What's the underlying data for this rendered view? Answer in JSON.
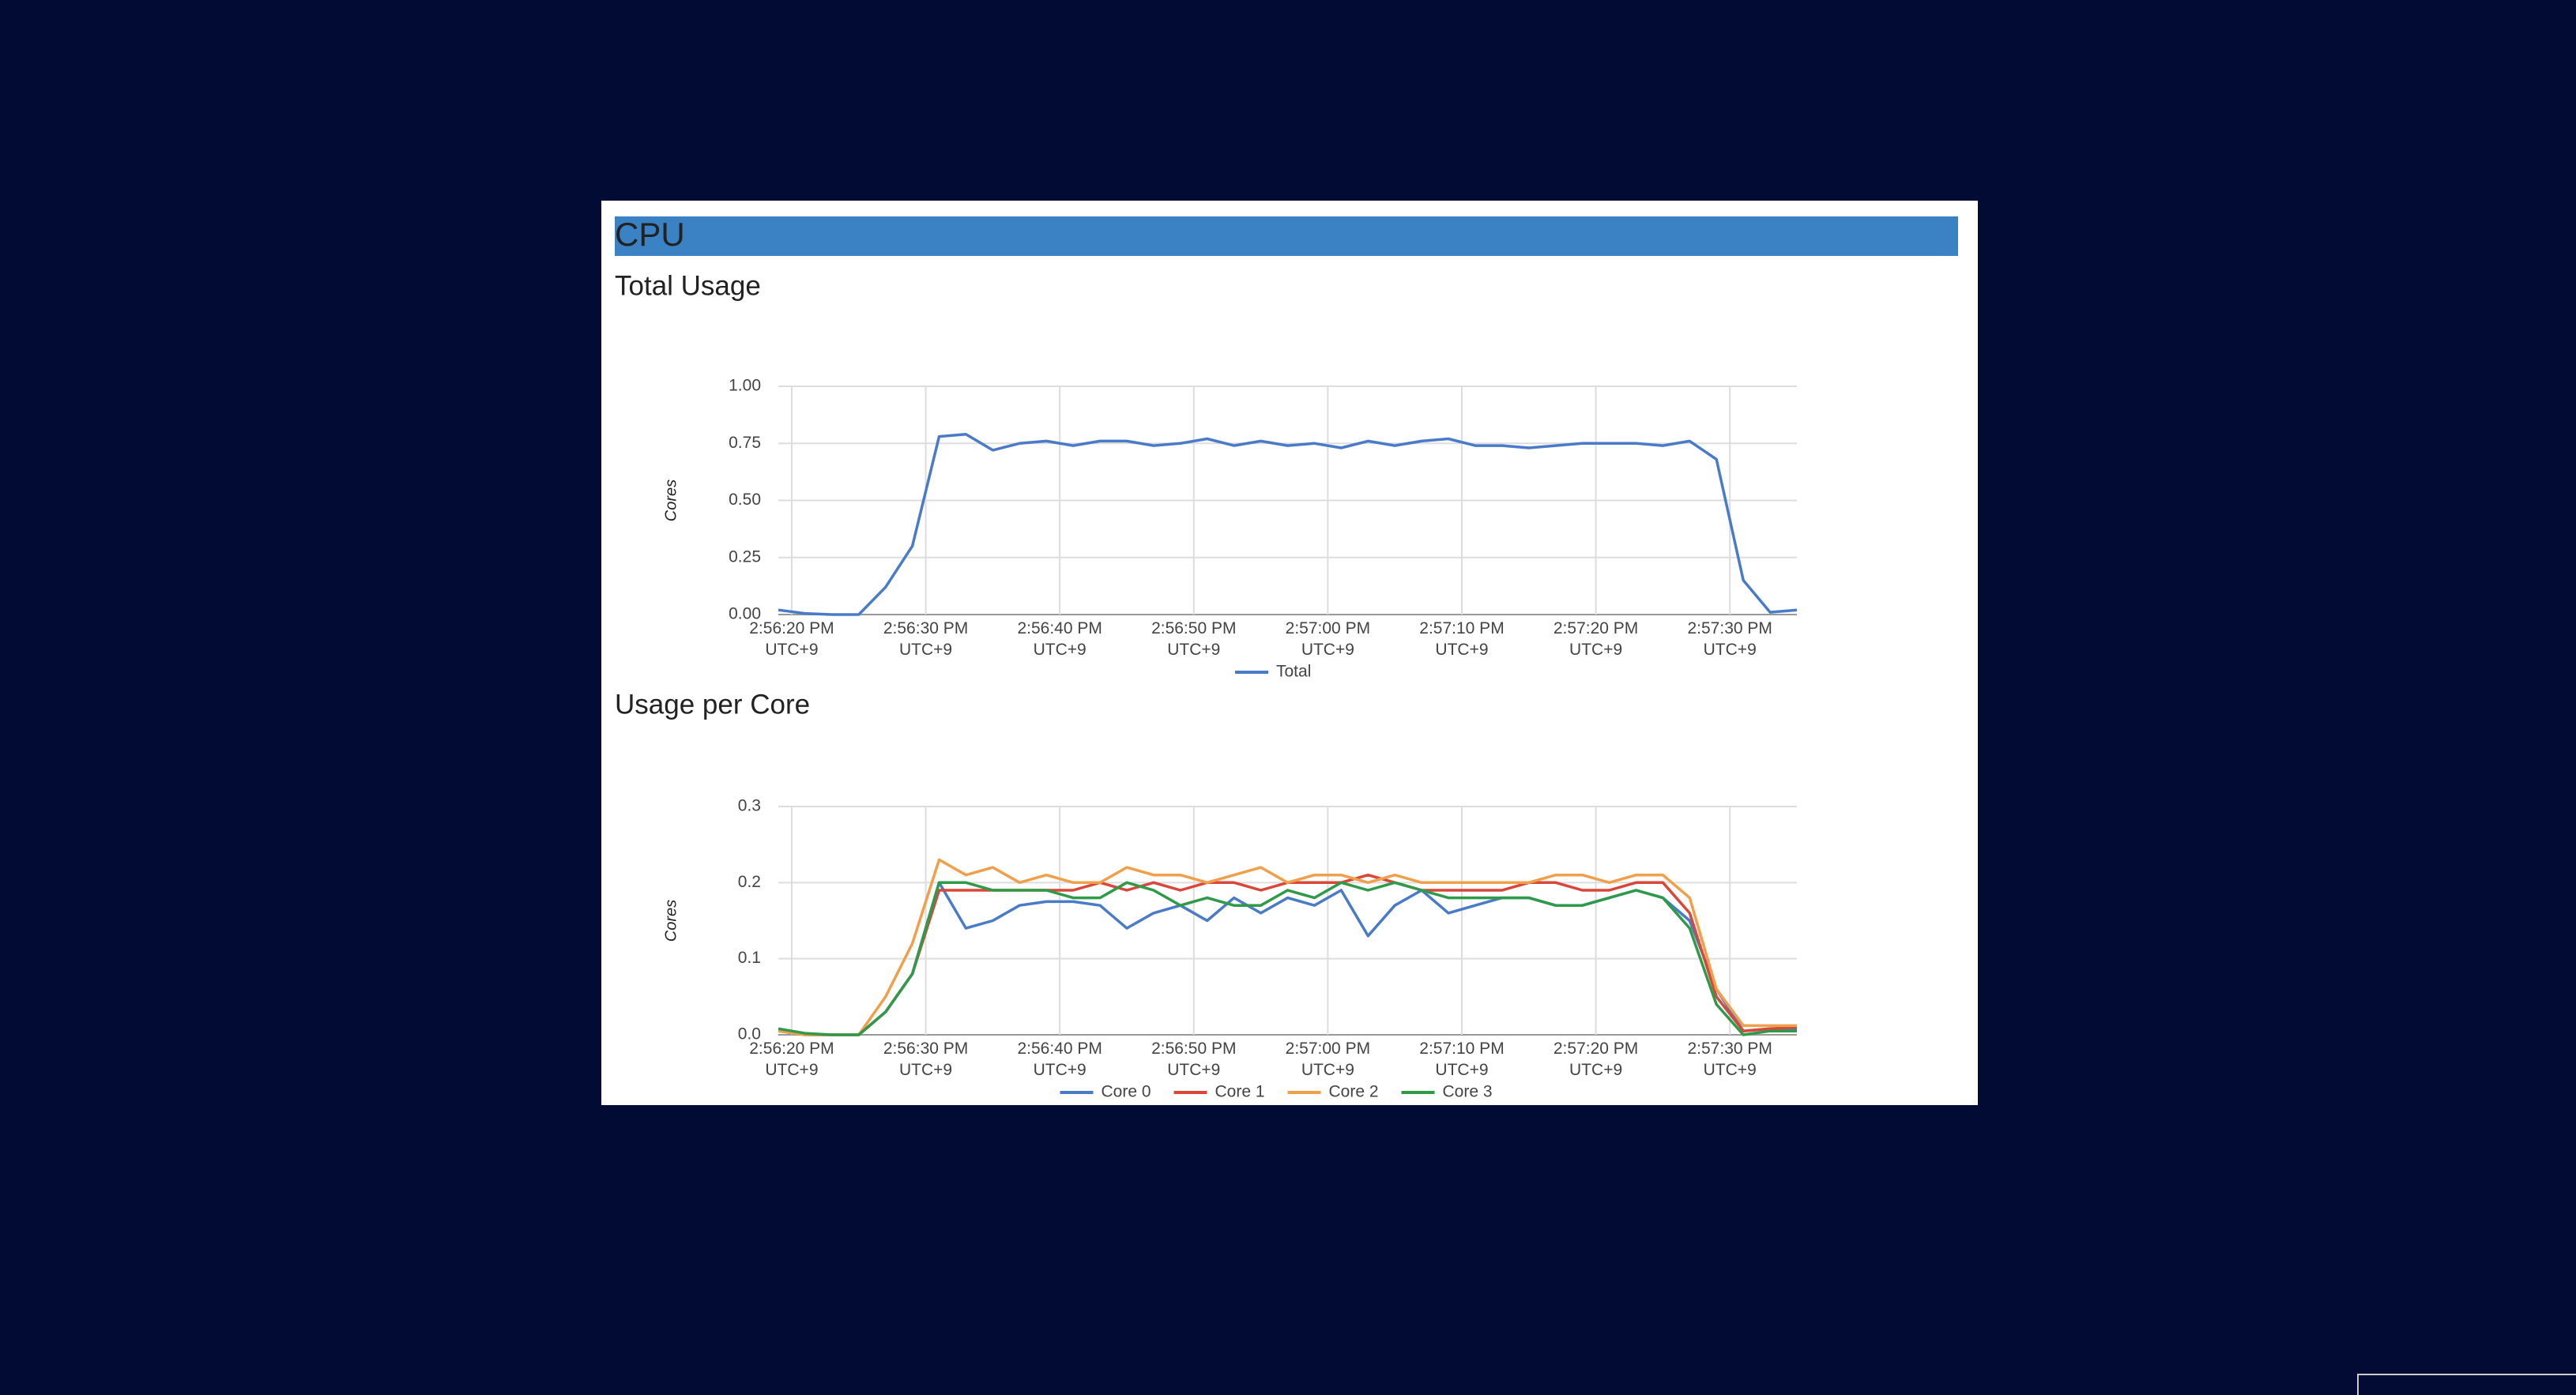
{
  "header": {
    "title": "CPU"
  },
  "chart_data": [
    {
      "type": "line",
      "title": "Total Usage",
      "y_label": "Cores",
      "x": [
        "2:56:19 PM",
        "2:56:21 PM",
        "2:56:23 PM",
        "2:56:25 PM",
        "2:56:27 PM",
        "2:56:29 PM",
        "2:56:31 PM",
        "2:56:33 PM",
        "2:56:35 PM",
        "2:56:37 PM",
        "2:56:39 PM",
        "2:56:41 PM",
        "2:56:43 PM",
        "2:56:45 PM",
        "2:56:47 PM",
        "2:56:49 PM",
        "2:56:51 PM",
        "2:56:53 PM",
        "2:56:55 PM",
        "2:56:57 PM",
        "2:56:59 PM",
        "2:57:01 PM",
        "2:57:03 PM",
        "2:57:05 PM",
        "2:57:07 PM",
        "2:57:09 PM",
        "2:57:11 PM",
        "2:57:13 PM",
        "2:57:15 PM",
        "2:57:17 PM",
        "2:57:19 PM",
        "2:57:21 PM",
        "2:57:23 PM",
        "2:57:25 PM",
        "2:57:27 PM",
        "2:57:29 PM",
        "2:57:31 PM",
        "2:57:33 PM",
        "2:57:35 PM"
      ],
      "series": [
        {
          "name": "Total",
          "color": "#4a7bc8",
          "values": [
            0.02,
            0.005,
            0,
            0,
            0.12,
            0.3,
            0.78,
            0.79,
            0.72,
            0.75,
            0.76,
            0.74,
            0.76,
            0.76,
            0.74,
            0.75,
            0.77,
            0.74,
            0.76,
            0.74,
            0.75,
            0.73,
            0.76,
            0.74,
            0.76,
            0.77,
            0.74,
            0.74,
            0.73,
            0.74,
            0.75,
            0.75,
            0.75,
            0.74,
            0.76,
            0.68,
            0.15,
            0.01,
            0.02
          ]
        }
      ],
      "xlim": [
        "2:56:19 PM",
        "2:57:35 PM"
      ],
      "xticks": [
        {
          "value": "2:56:20 PM",
          "label": "2:56:20 PM UTC+9"
        },
        {
          "value": "2:56:30 PM",
          "label": "2:56:30 PM UTC+9"
        },
        {
          "value": "2:56:40 PM",
          "label": "2:56:40 PM UTC+9"
        },
        {
          "value": "2:56:50 PM",
          "label": "2:56:50 PM UTC+9"
        },
        {
          "value": "2:57:00 PM",
          "label": "2:57:00 PM UTC+9"
        },
        {
          "value": "2:57:10 PM",
          "label": "2:57:10 PM UTC+9"
        },
        {
          "value": "2:57:20 PM",
          "label": "2:57:20 PM UTC+9"
        },
        {
          "value": "2:57:30 PM",
          "label": "2:57:30 PM UTC+9"
        }
      ],
      "ylim": [
        0,
        1
      ],
      "yticks": [
        {
          "value": 0,
          "label": "0.00"
        },
        {
          "value": 0.25,
          "label": "0.25"
        },
        {
          "value": 0.5,
          "label": "0.50"
        },
        {
          "value": 0.75,
          "label": "0.75"
        },
        {
          "value": 1,
          "label": "1.00"
        }
      ],
      "grid": true,
      "legend": "bottom"
    },
    {
      "type": "line",
      "title": "Usage per Core",
      "y_label": "Cores",
      "x": [
        "2:56:19 PM",
        "2:56:21 PM",
        "2:56:23 PM",
        "2:56:25 PM",
        "2:56:27 PM",
        "2:56:29 PM",
        "2:56:31 PM",
        "2:56:33 PM",
        "2:56:35 PM",
        "2:56:37 PM",
        "2:56:39 PM",
        "2:56:41 PM",
        "2:56:43 PM",
        "2:56:45 PM",
        "2:56:47 PM",
        "2:56:49 PM",
        "2:56:51 PM",
        "2:56:53 PM",
        "2:56:55 PM",
        "2:56:57 PM",
        "2:56:59 PM",
        "2:57:01 PM",
        "2:57:03 PM",
        "2:57:05 PM",
        "2:57:07 PM",
        "2:57:09 PM",
        "2:57:11 PM",
        "2:57:13 PM",
        "2:57:15 PM",
        "2:57:17 PM",
        "2:57:19 PM",
        "2:57:21 PM",
        "2:57:23 PM",
        "2:57:25 PM",
        "2:57:27 PM",
        "2:57:29 PM",
        "2:57:31 PM",
        "2:57:33 PM",
        "2:57:35 PM"
      ],
      "series": [
        {
          "name": "Core 0",
          "color": "#4a7bc8",
          "values": [
            0.005,
            0,
            0,
            0,
            0.03,
            0.08,
            0.2,
            0.14,
            0.15,
            0.17,
            0.175,
            0.175,
            0.17,
            0.14,
            0.16,
            0.17,
            0.15,
            0.18,
            0.16,
            0.18,
            0.17,
            0.19,
            0.13,
            0.17,
            0.19,
            0.16,
            0.17,
            0.18,
            0.18,
            0.17,
            0.17,
            0.18,
            0.19,
            0.18,
            0.15,
            0.06,
            0.005,
            0.008,
            0.008
          ]
        },
        {
          "name": "Core 1",
          "color": "#d9473a",
          "values": [
            0.005,
            0,
            0,
            0,
            0.03,
            0.08,
            0.19,
            0.19,
            0.19,
            0.19,
            0.19,
            0.19,
            0.2,
            0.19,
            0.2,
            0.19,
            0.2,
            0.2,
            0.19,
            0.2,
            0.2,
            0.2,
            0.21,
            0.2,
            0.19,
            0.19,
            0.19,
            0.19,
            0.2,
            0.2,
            0.19,
            0.19,
            0.2,
            0.2,
            0.16,
            0.05,
            0.005,
            0.008,
            0.01
          ]
        },
        {
          "name": "Core 2",
          "color": "#f0a04b",
          "values": [
            0.005,
            0,
            0,
            0,
            0.05,
            0.12,
            0.23,
            0.21,
            0.22,
            0.2,
            0.21,
            0.2,
            0.2,
            0.22,
            0.21,
            0.21,
            0.2,
            0.21,
            0.22,
            0.2,
            0.21,
            0.21,
            0.2,
            0.21,
            0.2,
            0.2,
            0.2,
            0.2,
            0.2,
            0.21,
            0.21,
            0.2,
            0.21,
            0.21,
            0.18,
            0.06,
            0.012,
            0.012,
            0.012
          ]
        },
        {
          "name": "Core 3",
          "color": "#2e9a4a",
          "values": [
            0.008,
            0.002,
            0,
            0,
            0.03,
            0.08,
            0.2,
            0.2,
            0.19,
            0.19,
            0.19,
            0.18,
            0.18,
            0.2,
            0.19,
            0.17,
            0.18,
            0.17,
            0.17,
            0.19,
            0.18,
            0.2,
            0.19,
            0.2,
            0.19,
            0.18,
            0.18,
            0.18,
            0.18,
            0.17,
            0.17,
            0.18,
            0.19,
            0.18,
            0.14,
            0.04,
            0,
            0.005,
            0.005
          ]
        }
      ],
      "xlim": [
        "2:56:19 PM",
        "2:57:35 PM"
      ],
      "xticks": [
        {
          "value": "2:56:20 PM",
          "label": "2:56:20 PM UTC+9"
        },
        {
          "value": "2:56:30 PM",
          "label": "2:56:30 PM UTC+9"
        },
        {
          "value": "2:56:40 PM",
          "label": "2:56:40 PM UTC+9"
        },
        {
          "value": "2:56:50 PM",
          "label": "2:56:50 PM UTC+9"
        },
        {
          "value": "2:57:00 PM",
          "label": "2:57:00 PM UTC+9"
        },
        {
          "value": "2:57:10 PM",
          "label": "2:57:10 PM UTC+9"
        },
        {
          "value": "2:57:20 PM",
          "label": "2:57:20 PM UTC+9"
        },
        {
          "value": "2:57:30 PM",
          "label": "2:57:30 PM UTC+9"
        }
      ],
      "ylim": [
        0,
        0.3
      ],
      "yticks": [
        {
          "value": 0,
          "label": "0.0"
        },
        0.1,
        0.2,
        0.3
      ],
      "grid": true,
      "legend": "bottom"
    }
  ]
}
